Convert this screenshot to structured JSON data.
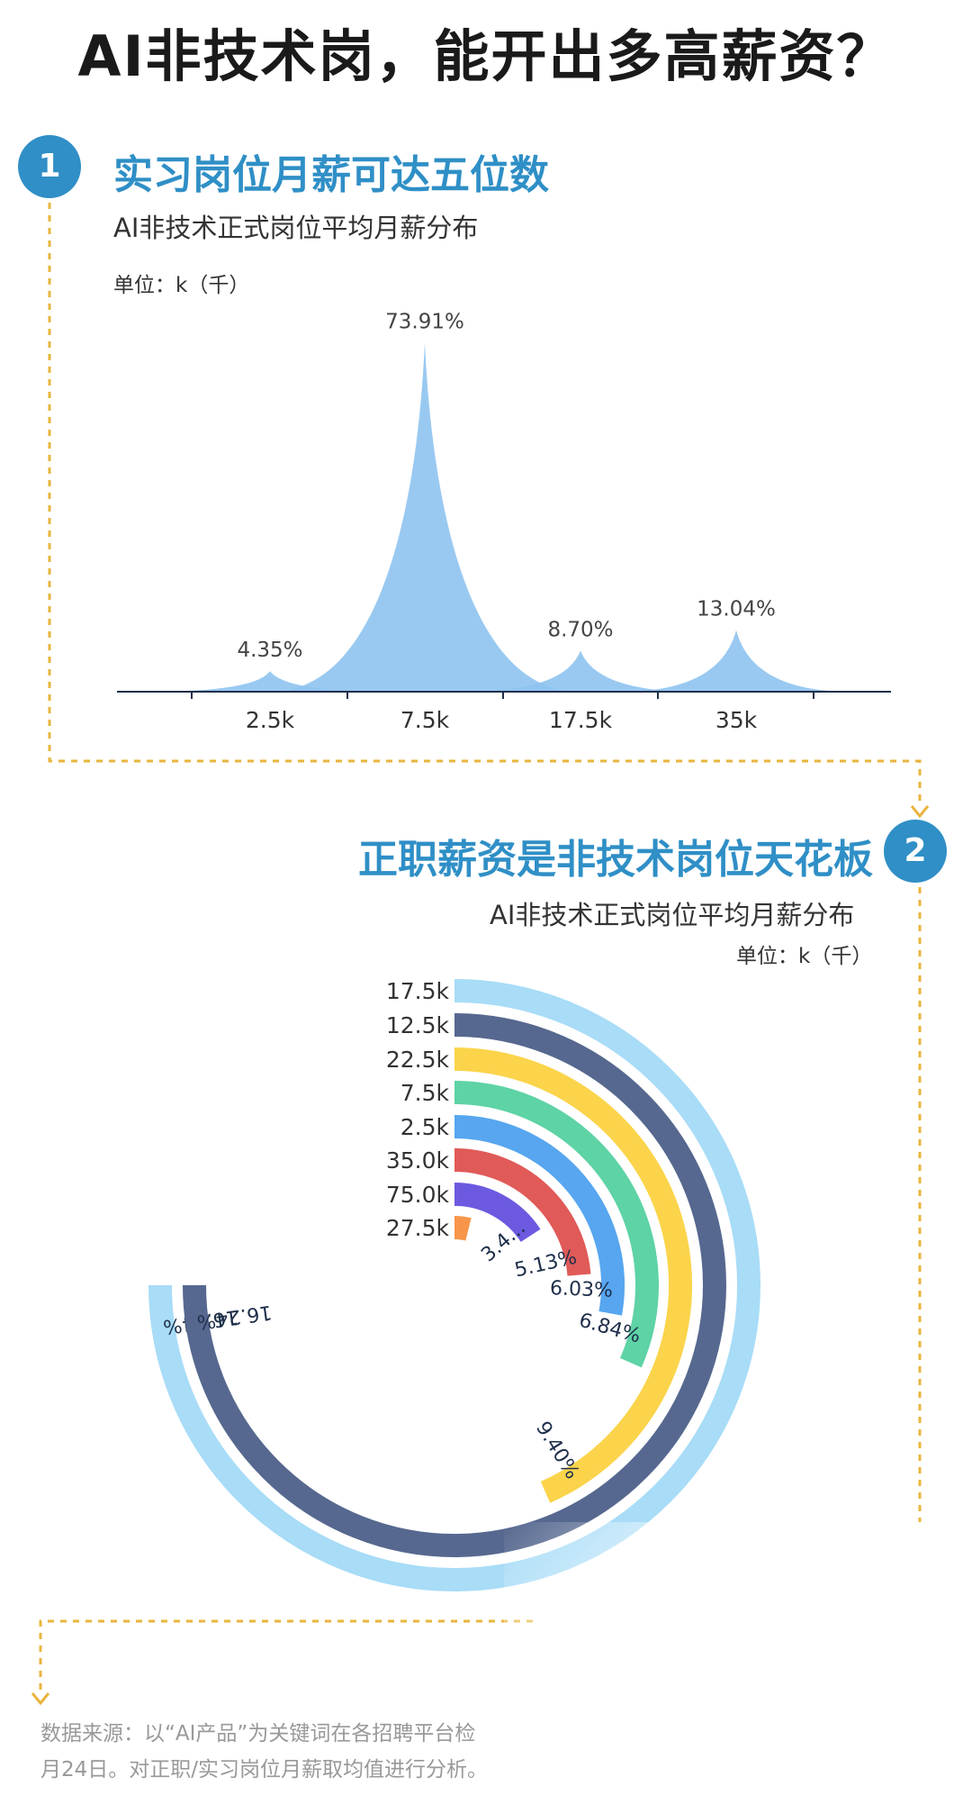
{
  "title": "AI非技术岗，能开出多高薪资？",
  "section1": {
    "number": "1",
    "title": "实习岗位月薪可达五位数",
    "subtitle": "AI非技术正式岗位平均月薪分布",
    "unit": "单位：k（千）"
  },
  "section2": {
    "number": "2",
    "title": "正职薪资是非技术岗位天花板",
    "subtitle": "AI非技术正式岗位平均月薪分布",
    "unit": "单位：k（千）"
  },
  "footer": {
    "line1": "数据来源：以“AI产品”为关键词在各招聘平台检",
    "line2": "月24日。对正职/实习岗位月薪取均值进行分析。"
  },
  "colors": {
    "accent": "#2f8fc6",
    "dotted": "#e8b53e",
    "peak_fill": "#8ec3f0"
  },
  "chart_data": [
    {
      "type": "area",
      "categories": [
        "2.5k",
        "7.5k",
        "17.5k",
        "35k"
      ],
      "values": [
        4.35,
        73.91,
        8.7,
        13.04
      ],
      "value_labels": [
        "4.35%",
        "73.91%",
        "8.70%",
        "13.04%"
      ],
      "color": "#8ec3f0"
    },
    {
      "type": "radial-bar",
      "categories": [
        "17.5k",
        "12.5k",
        "22.5k",
        "7.5k",
        "2.5k",
        "35.0k",
        "75.0k",
        "27.5k"
      ],
      "values": [
        16.24,
        16.24,
        9.4,
        6.84,
        6.03,
        5.13,
        3.42,
        1.0
      ],
      "value_labels": [
        "16.24%",
        "16.24%",
        "9.40%",
        "6.84%",
        "6.03%",
        "5.13%",
        "3.4...",
        ""
      ],
      "colors": [
        "#a8dcf7",
        "#56688f",
        "#fbd44b",
        "#5ed3a5",
        "#57a6ef",
        "#e05a58",
        "#6b5ae0",
        "#f7964b"
      ]
    }
  ]
}
